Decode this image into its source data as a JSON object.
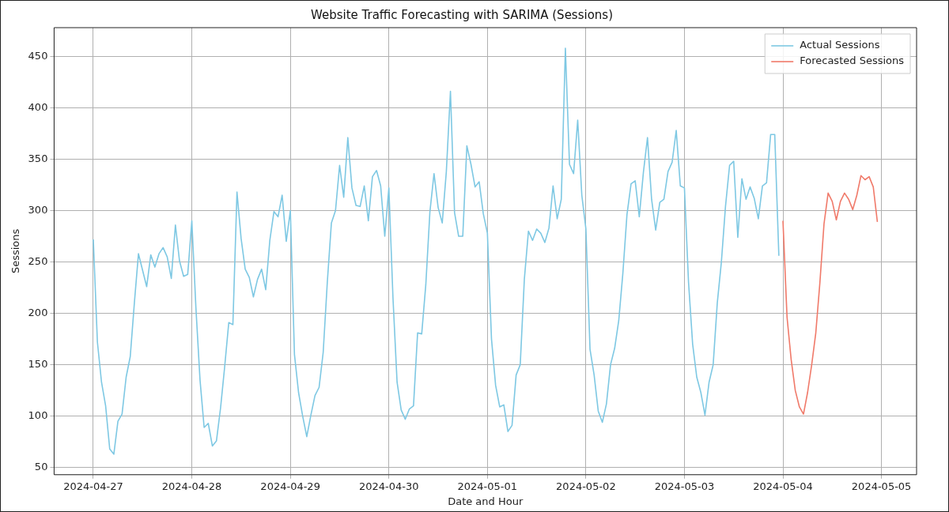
{
  "chart_data": {
    "type": "line",
    "title": "Website Traffic Forecasting with SARIMA (Sessions)",
    "xlabel": "Date and Hour",
    "ylabel": "Sessions",
    "xlim": [
      "2024-04-26T14:27",
      "2024-05-05T08:33"
    ],
    "xticks": [
      "2024-04-27",
      "2024-04-28",
      "2024-04-29",
      "2024-04-30",
      "2024-05-01",
      "2024-05-02",
      "2024-05-03",
      "2024-05-04",
      "2024-05-05"
    ],
    "ylim": [
      43,
      478
    ],
    "yticks": [
      50,
      100,
      150,
      200,
      250,
      300,
      350,
      400,
      450
    ],
    "grid": true,
    "legend": "top right",
    "series": [
      {
        "name": "Actual Sessions",
        "color": "#7ec8e3",
        "x": [
          "2024-04-27T00:00",
          "2024-04-27T01:00",
          "2024-04-27T02:00",
          "2024-04-27T03:00",
          "2024-04-27T04:00",
          "2024-04-27T05:00",
          "2024-04-27T06:00",
          "2024-04-27T07:00",
          "2024-04-27T08:00",
          "2024-04-27T09:00",
          "2024-04-27T10:00",
          "2024-04-27T11:00",
          "2024-04-27T12:00",
          "2024-04-27T13:00",
          "2024-04-27T14:00",
          "2024-04-27T15:00",
          "2024-04-27T16:00",
          "2024-04-27T17:00",
          "2024-04-27T18:00",
          "2024-04-27T19:00",
          "2024-04-27T20:00",
          "2024-04-27T21:00",
          "2024-04-27T22:00",
          "2024-04-27T23:00",
          "2024-04-28T00:00",
          "2024-04-28T01:00",
          "2024-04-28T02:00",
          "2024-04-28T03:00",
          "2024-04-28T04:00",
          "2024-04-28T05:00",
          "2024-04-28T06:00",
          "2024-04-28T07:00",
          "2024-04-28T08:00",
          "2024-04-28T09:00",
          "2024-04-28T10:00",
          "2024-04-28T11:00",
          "2024-04-28T12:00",
          "2024-04-28T13:00",
          "2024-04-28T14:00",
          "2024-04-28T15:00",
          "2024-04-28T16:00",
          "2024-04-28T17:00",
          "2024-04-28T18:00",
          "2024-04-28T19:00",
          "2024-04-28T20:00",
          "2024-04-28T21:00",
          "2024-04-28T22:00",
          "2024-04-28T23:00",
          "2024-04-29T00:00",
          "2024-04-29T01:00",
          "2024-04-29T02:00",
          "2024-04-29T03:00",
          "2024-04-29T04:00",
          "2024-04-29T05:00",
          "2024-04-29T06:00",
          "2024-04-29T07:00",
          "2024-04-29T08:00",
          "2024-04-29T09:00",
          "2024-04-29T10:00",
          "2024-04-29T11:00",
          "2024-04-29T12:00",
          "2024-04-29T13:00",
          "2024-04-29T14:00",
          "2024-04-29T15:00",
          "2024-04-29T16:00",
          "2024-04-29T17:00",
          "2024-04-29T18:00",
          "2024-04-29T19:00",
          "2024-04-29T20:00",
          "2024-04-29T21:00",
          "2024-04-29T22:00",
          "2024-04-29T23:00",
          "2024-04-30T00:00",
          "2024-04-30T01:00",
          "2024-04-30T02:00",
          "2024-04-30T03:00",
          "2024-04-30T04:00",
          "2024-04-30T05:00",
          "2024-04-30T06:00",
          "2024-04-30T07:00",
          "2024-04-30T08:00",
          "2024-04-30T09:00",
          "2024-04-30T10:00",
          "2024-04-30T11:00",
          "2024-04-30T12:00",
          "2024-04-30T13:00",
          "2024-04-30T14:00",
          "2024-04-30T15:00",
          "2024-04-30T16:00",
          "2024-04-30T17:00",
          "2024-04-30T18:00",
          "2024-04-30T19:00",
          "2024-04-30T20:00",
          "2024-04-30T21:00",
          "2024-04-30T22:00",
          "2024-04-30T23:00",
          "2024-05-01T00:00",
          "2024-05-01T01:00",
          "2024-05-01T02:00",
          "2024-05-01T03:00",
          "2024-05-01T04:00",
          "2024-05-01T05:00",
          "2024-05-01T06:00",
          "2024-05-01T07:00",
          "2024-05-01T08:00",
          "2024-05-01T09:00",
          "2024-05-01T10:00",
          "2024-05-01T11:00",
          "2024-05-01T12:00",
          "2024-05-01T13:00",
          "2024-05-01T14:00",
          "2024-05-01T15:00",
          "2024-05-01T16:00",
          "2024-05-01T17:00",
          "2024-05-01T18:00",
          "2024-05-01T19:00",
          "2024-05-01T20:00",
          "2024-05-01T21:00",
          "2024-05-01T22:00",
          "2024-05-01T23:00",
          "2024-05-02T00:00",
          "2024-05-02T01:00",
          "2024-05-02T02:00",
          "2024-05-02T03:00",
          "2024-05-02T04:00",
          "2024-05-02T05:00",
          "2024-05-02T06:00",
          "2024-05-02T07:00",
          "2024-05-02T08:00",
          "2024-05-02T09:00",
          "2024-05-02T10:00",
          "2024-05-02T11:00",
          "2024-05-02T12:00",
          "2024-05-02T13:00",
          "2024-05-02T14:00",
          "2024-05-02T15:00",
          "2024-05-02T16:00",
          "2024-05-02T17:00",
          "2024-05-02T18:00",
          "2024-05-02T19:00",
          "2024-05-02T20:00",
          "2024-05-02T21:00",
          "2024-05-02T22:00",
          "2024-05-02T23:00",
          "2024-05-03T00:00",
          "2024-05-03T01:00",
          "2024-05-03T02:00",
          "2024-05-03T03:00",
          "2024-05-03T04:00",
          "2024-05-03T05:00",
          "2024-05-03T06:00",
          "2024-05-03T07:00",
          "2024-05-03T08:00",
          "2024-05-03T09:00",
          "2024-05-03T10:00",
          "2024-05-03T11:00",
          "2024-05-03T12:00",
          "2024-05-03T13:00",
          "2024-05-03T14:00",
          "2024-05-03T15:00",
          "2024-05-03T16:00",
          "2024-05-03T17:00",
          "2024-05-03T18:00",
          "2024-05-03T19:00",
          "2024-05-03T20:00",
          "2024-05-03T21:00",
          "2024-05-03T22:00",
          "2024-05-03T23:00"
        ],
        "values": [
          272,
          172,
          133,
          110,
          68,
          63,
          95,
          102,
          138,
          158,
          210,
          258,
          242,
          226,
          257,
          245,
          258,
          264,
          255,
          234,
          286,
          251,
          236,
          238,
          290,
          205,
          135,
          89,
          93,
          71,
          76,
          108,
          148,
          191,
          189,
          318,
          273,
          243,
          235,
          216,
          233,
          243,
          223,
          271,
          299,
          294,
          315,
          270,
          300,
          160,
          123,
          100,
          80,
          101,
          120,
          128,
          162,
          230,
          288,
          300,
          344,
          313,
          371,
          322,
          305,
          304,
          324,
          290,
          333,
          339,
          324,
          275,
          322,
          215,
          133,
          106,
          97,
          107,
          110,
          181,
          180,
          228,
          299,
          336,
          303,
          288,
          338,
          416,
          298,
          275,
          275,
          363,
          345,
          323,
          328,
          297,
          278,
          175,
          130,
          109,
          111,
          85,
          91,
          140,
          150,
          233,
          280,
          271,
          282,
          278,
          269,
          283,
          324,
          292,
          311,
          458,
          345,
          336,
          388,
          315,
          282,
          165,
          140,
          105,
          94,
          112,
          150,
          166,
          193,
          239,
          296,
          326,
          329,
          294,
          337,
          371,
          311,
          281,
          308,
          311,
          338,
          347,
          378,
          324,
          322,
          230,
          170,
          138,
          123,
          101,
          133,
          150,
          210,
          250,
          304,
          344,
          348,
          274,
          331,
          311,
          323,
          312,
          292,
          324,
          327,
          374,
          374,
          256
        ]
      },
      {
        "name": "Forecasted Sessions",
        "color": "#f07a6a",
        "x": [
          "2024-05-04T00:00",
          "2024-05-04T01:00",
          "2024-05-04T02:00",
          "2024-05-04T03:00",
          "2024-05-04T04:00",
          "2024-05-04T05:00",
          "2024-05-04T06:00",
          "2024-05-04T07:00",
          "2024-05-04T08:00",
          "2024-05-04T09:00",
          "2024-05-04T10:00",
          "2024-05-04T11:00",
          "2024-05-04T12:00",
          "2024-05-04T13:00",
          "2024-05-04T14:00",
          "2024-05-04T15:00",
          "2024-05-04T16:00",
          "2024-05-04T17:00",
          "2024-05-04T18:00",
          "2024-05-04T19:00",
          "2024-05-04T20:00",
          "2024-05-04T21:00",
          "2024-05-04T22:00",
          "2024-05-04T23:00"
        ],
        "values": [
          290,
          196,
          155,
          125,
          109,
          102,
          123,
          150,
          181,
          230,
          287,
          317,
          309,
          291,
          309,
          317,
          311,
          301,
          315,
          334,
          330,
          333,
          323,
          289
        ]
      }
    ]
  }
}
